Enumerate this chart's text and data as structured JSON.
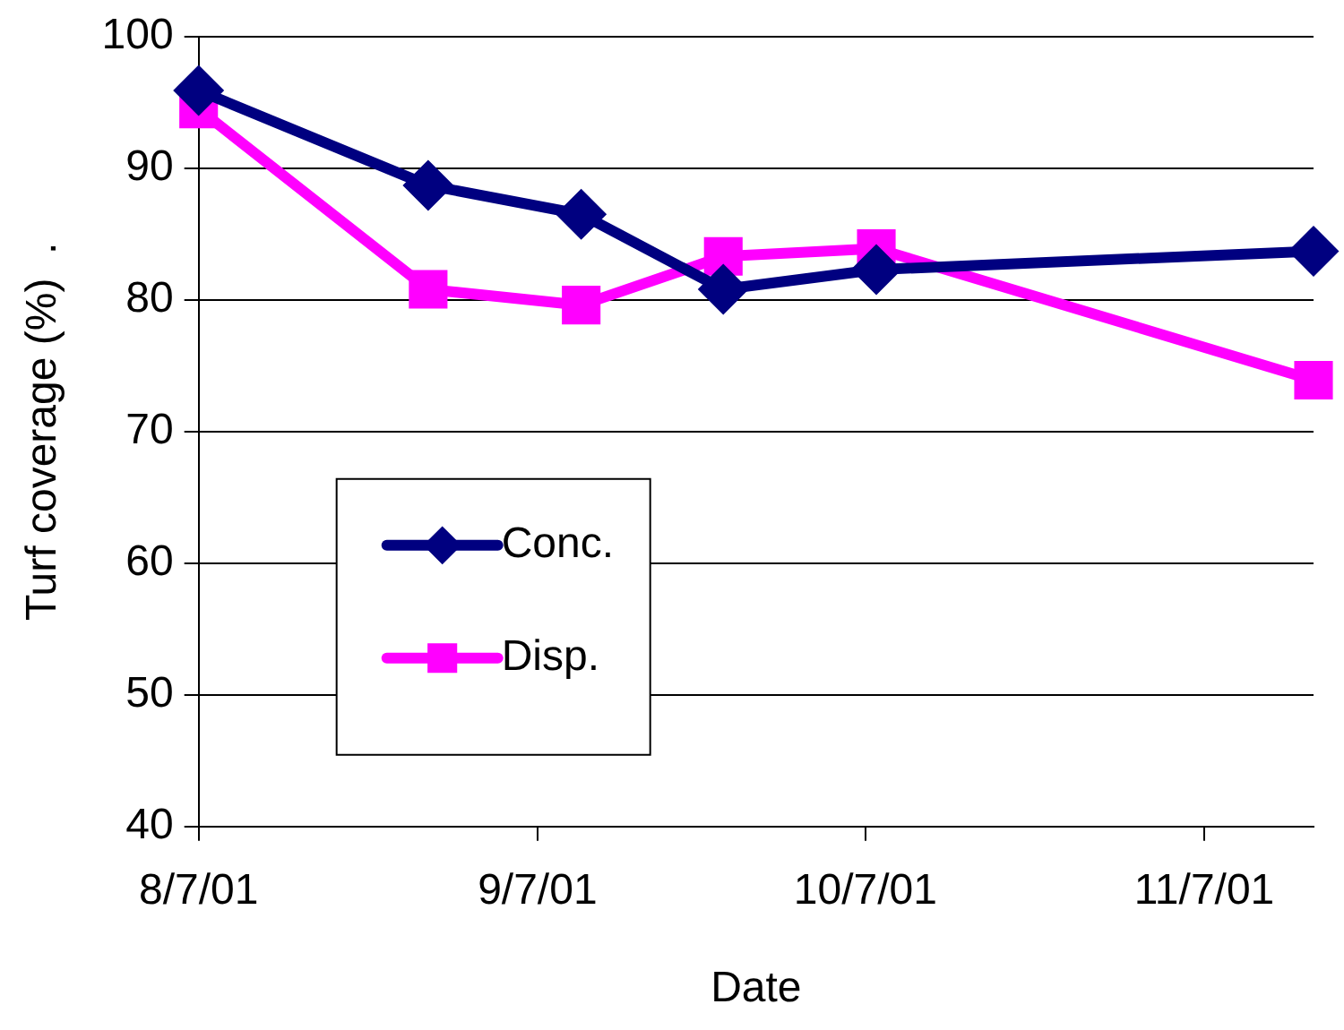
{
  "chart_data": {
    "type": "line",
    "xlabel": "Date",
    "ylabel": "Turf coverage (%)  .",
    "x": [
      "2001-08-07",
      "2001-08-28",
      "2001-09-11",
      "2001-09-24",
      "2001-10-08",
      "2001-11-17"
    ],
    "series": [
      {
        "name": "Conc.",
        "color": "#000080",
        "marker": "diamond",
        "values": [
          95.9,
          88.7,
          86.5,
          80.8,
          82.3,
          83.7
        ]
      },
      {
        "name": "Disp.",
        "color": "#ff00ff",
        "marker": "square",
        "values": [
          94.5,
          80.8,
          79.6,
          83.3,
          83.9,
          73.9
        ]
      }
    ],
    "xlim": [
      "2001-08-07",
      "2001-11-17"
    ],
    "xticks": [
      {
        "value": "2001-08-07",
        "label": "8/7/01"
      },
      {
        "value": "2001-09-07",
        "label": "9/7/01"
      },
      {
        "value": "2001-10-07",
        "label": "10/7/01"
      },
      {
        "value": "2001-11-07",
        "label": "11/7/01"
      }
    ],
    "ylim": [
      40,
      100
    ],
    "yticks": [
      40,
      50,
      60,
      70,
      80,
      90,
      100
    ],
    "grid": "y",
    "legend": "bottom left",
    "line_style": "solid"
  }
}
